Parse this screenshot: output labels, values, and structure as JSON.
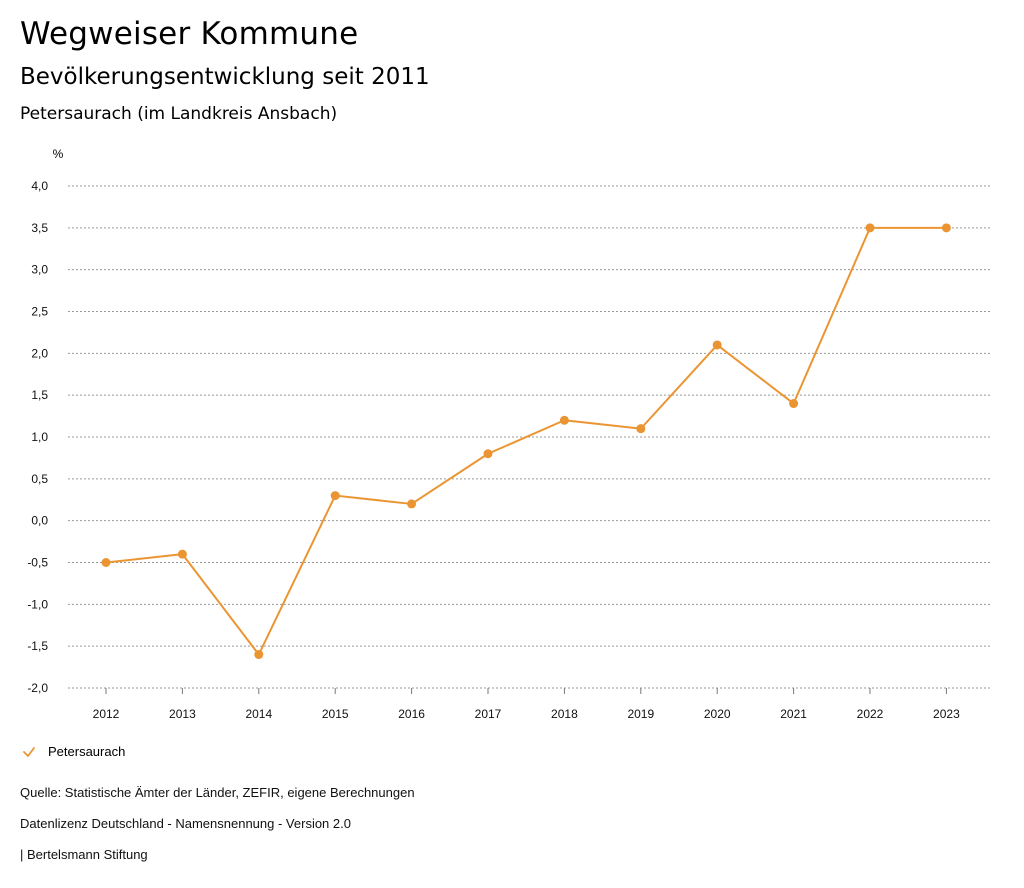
{
  "header": {
    "title": "Wegweiser Kommune",
    "subtitle": "Bevölkerungsentwicklung seit 2011",
    "region": "Petersaurach (im Landkreis Ansbach)"
  },
  "chart_data": {
    "type": "line",
    "ylabel": "%",
    "xlabel": "",
    "ylim": [
      -2.0,
      4.0
    ],
    "yticks": [
      "4,0",
      "3,5",
      "3,0",
      "2,5",
      "2,0",
      "1,5",
      "1,0",
      "0,5",
      "0,0",
      "-0,5",
      "-1,0",
      "-1,5",
      "-2,0"
    ],
    "categories": [
      "2012",
      "2013",
      "2014",
      "2015",
      "2016",
      "2017",
      "2018",
      "2019",
      "2020",
      "2021",
      "2022",
      "2023"
    ],
    "series": [
      {
        "name": "Petersaurach",
        "color": "#eb9532",
        "values": [
          -0.5,
          -0.4,
          -1.6,
          0.3,
          0.2,
          0.8,
          1.2,
          1.1,
          2.1,
          1.4,
          3.5,
          3.5
        ]
      }
    ],
    "grid": true,
    "grid_style": "dotted horizontal",
    "legend_position": "bottom-left"
  },
  "legend": {
    "icon": "check-icon",
    "label": "Petersaurach"
  },
  "footer": {
    "source": "Quelle: Statistische Ämter der Länder, ZEFIR, eigene Berechnungen",
    "license": "Datenlizenz Deutschland - Namensnennung - Version 2.0",
    "brand": "| Bertelsmann Stiftung"
  }
}
